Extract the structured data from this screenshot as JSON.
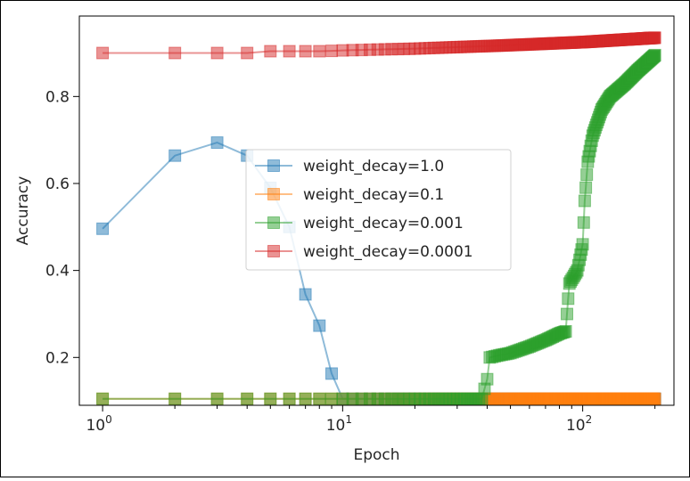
{
  "chart_data": {
    "type": "line",
    "title": "",
    "xlabel": "Epoch",
    "ylabel": "Accuracy",
    "xscale": "log",
    "xlim": [
      0.8,
      240
    ],
    "ylim": [
      0.09,
      0.985
    ],
    "x_ticks": [
      {
        "value": 1,
        "base": "10",
        "exp": "0"
      },
      {
        "value": 10,
        "base": "10",
        "exp": "1"
      },
      {
        "value": 100,
        "base": "10",
        "exp": "2"
      }
    ],
    "y_ticks": [
      {
        "value": 0.2,
        "label": "0.2"
      },
      {
        "value": 0.4,
        "label": "0.4"
      },
      {
        "value": 0.6,
        "label": "0.6"
      },
      {
        "value": 0.8,
        "label": "0.8"
      }
    ],
    "grid": false,
    "legend_position": "center",
    "marker": "square",
    "series": [
      {
        "name": "weight_decay=1.0",
        "color": "#1f77b4",
        "x": [
          1,
          2,
          3,
          4,
          5,
          6,
          7,
          8,
          9,
          10,
          20,
          50,
          100,
          200
        ],
        "y": [
          0.496,
          0.664,
          0.694,
          0.664,
          0.59,
          0.5,
          0.345,
          0.273,
          0.163,
          0.105,
          0.105,
          0.105,
          0.105,
          0.105
        ]
      },
      {
        "name": "weight_decay=0.1",
        "color": "#ff7f0e",
        "x": [
          1,
          2,
          5,
          10,
          20,
          50,
          100,
          200
        ],
        "y": [
          0.105,
          0.105,
          0.105,
          0.105,
          0.105,
          0.105,
          0.105,
          0.105
        ]
      },
      {
        "name": "weight_decay=0.001",
        "color": "#2ca02c",
        "x": [
          1,
          2,
          5,
          10,
          20,
          38,
          40,
          41,
          45,
          50,
          60,
          70,
          80,
          85,
          86,
          88,
          95,
          100,
          102,
          105,
          110,
          120,
          130,
          150,
          170,
          200
        ],
        "y": [
          0.105,
          0.105,
          0.105,
          0.105,
          0.105,
          0.105,
          0.15,
          0.2,
          0.205,
          0.21,
          0.225,
          0.24,
          0.255,
          0.26,
          0.3,
          0.37,
          0.4,
          0.46,
          0.56,
          0.65,
          0.71,
          0.77,
          0.8,
          0.83,
          0.86,
          0.895
        ]
      },
      {
        "name": "weight_decay=0.0001",
        "color": "#d62728",
        "x": [
          1,
          2,
          3,
          4,
          5,
          6,
          7,
          8,
          9,
          10,
          20,
          50,
          100,
          200
        ],
        "y": [
          0.9,
          0.9,
          0.9,
          0.9,
          0.904,
          0.904,
          0.904,
          0.904,
          0.905,
          0.906,
          0.91,
          0.918,
          0.925,
          0.935
        ]
      }
    ]
  }
}
